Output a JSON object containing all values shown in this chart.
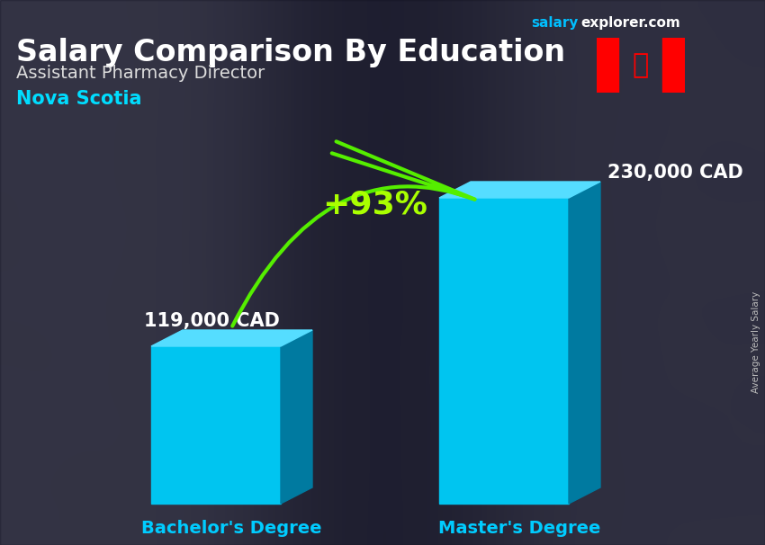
{
  "title": "Salary Comparison By Education",
  "subtitle": "Assistant Pharmacy Director",
  "location": "Nova Scotia",
  "site_salary": "salary",
  "site_rest": "explorer.com",
  "ylabel": "Average Yearly Salary",
  "categories": [
    "Bachelor's Degree",
    "Master's Degree"
  ],
  "values": [
    119000,
    230000
  ],
  "value_labels": [
    "119,000 CAD",
    "230,000 CAD"
  ],
  "pct_change": "+93%",
  "bar_color_main": "#00C5F0",
  "bar_color_dark": "#007AA0",
  "bar_color_top": "#55DDFF",
  "title_color": "#FFFFFF",
  "subtitle_color": "#DDDDDD",
  "location_color": "#00DDFF",
  "label_color": "#FFFFFF",
  "category_color": "#00CCFF",
  "pct_color": "#AAFF00",
  "arrow_color": "#55EE00",
  "bg_dark": "#1A1A2A",
  "overlay_alpha": 0.55,
  "site_color1": "#00BFFF",
  "site_color2": "#FFFFFF",
  "figsize": [
    8.5,
    6.06
  ],
  "dpi": 100
}
